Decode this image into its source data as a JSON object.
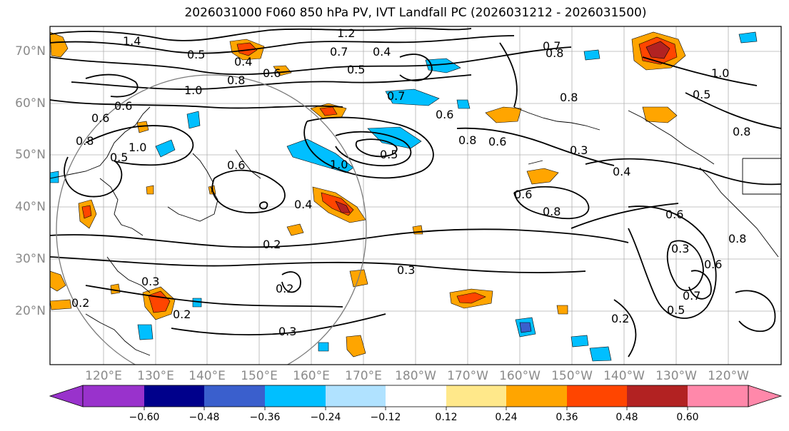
{
  "title": "2026031000 F060 850 hPa PV, IVT Landfall PC (2026031212 - 2026031500)",
  "lat_labels": [
    "70°N",
    "60°N",
    "50°N",
    "40°N",
    "30°N",
    "20°N"
  ],
  "lon_labels": [
    "120°E",
    "130°E",
    "140°E",
    "150°E",
    "160°E",
    "170°E",
    "180°W",
    "170°W",
    "160°W",
    "150°W",
    "140°W",
    "130°W",
    "120°W"
  ],
  "contour_labels": [
    "1.4",
    "1.2",
    "0.5",
    "0.4",
    "0.7",
    "0.4",
    "0.5",
    "0.6",
    "0.8",
    "0.7",
    "0.8",
    "1.0",
    "1.0",
    "0.5",
    "0.7",
    "0.6",
    "0.8",
    "0.6",
    "0.6",
    "0.8",
    "0.3",
    "0.6",
    "0.5",
    "1.0",
    "0.6",
    "0.8",
    "0.4",
    "0.4",
    "0.2",
    "0.3",
    "0.2",
    "0.3",
    "0.2",
    "0.3",
    "0.2",
    "0.6",
    "0.8",
    "0.6",
    "0.3",
    "0.6",
    "0.7",
    "0.5",
    "0.2",
    "0.8",
    "0.5",
    "1.0",
    "0.8"
  ],
  "colorbar": {
    "ticks": [
      "−0.60",
      "−0.48",
      "−0.36",
      "−0.24",
      "−0.12",
      "0.12",
      "0.24",
      "0.36",
      "0.48",
      "0.60"
    ],
    "colors": [
      "#9932cc",
      "#00008b",
      "#3a5fcd",
      "#00bfff",
      "#b0e2ff",
      "#ffffff",
      "#ffe88a",
      "#ffa500",
      "#ff4500",
      "#b22222",
      "#ff88aa"
    ]
  },
  "colors": {
    "contour": "#000000",
    "coast": "#000000",
    "grid": "#b0b0b0",
    "circle": "#7a7a7a"
  }
}
